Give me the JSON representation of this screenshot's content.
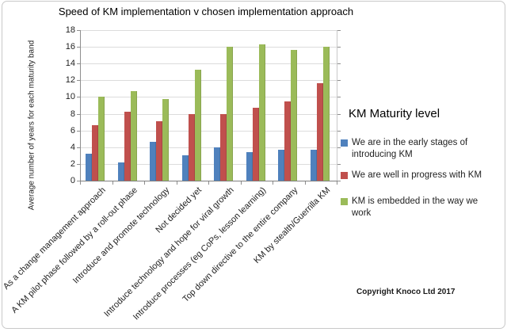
{
  "chart_data": {
    "type": "bar",
    "title": "Speed of KM implementation v chosen implementation approach",
    "ylabel": "Average number of years for each maturity band",
    "xlabel": "",
    "ylim": [
      0,
      18
    ],
    "ytick_step": 2,
    "yticks": [
      0,
      2,
      4,
      6,
      8,
      10,
      12,
      14,
      16,
      18
    ],
    "grid": true,
    "legend_title": "KM Maturity level",
    "legend_position": "right",
    "categories": [
      "As a change management approach",
      "A KM pilot phase followed by a roll-out phase",
      "Introduce and promote technology",
      "Not decided yet",
      "Introduce technology and hope for viral growth",
      "Introduce processes (eg CoPs, lesson learning)",
      "Top down directive to the entire company",
      "KM by stealth/Guerrilla KM"
    ],
    "series": [
      {
        "name": "We are in the early stages of introducing KM",
        "color": "#4F81BD",
        "values": [
          3.2,
          2.2,
          4.6,
          3.0,
          4.0,
          3.4,
          3.7,
          3.7
        ]
      },
      {
        "name": "We are well in progress with KM",
        "color": "#C0504D",
        "values": [
          6.6,
          8.2,
          7.1,
          8.0,
          8.0,
          8.7,
          9.5,
          11.7
        ]
      },
      {
        "name": "KM is embedded in the way we work",
        "color": "#9BBB59",
        "values": [
          10.0,
          10.7,
          9.8,
          13.3,
          16.0,
          16.3,
          15.6,
          16.0
        ]
      }
    ]
  },
  "footer": {
    "copyright": "Copyright Knoco Ltd 2017"
  }
}
